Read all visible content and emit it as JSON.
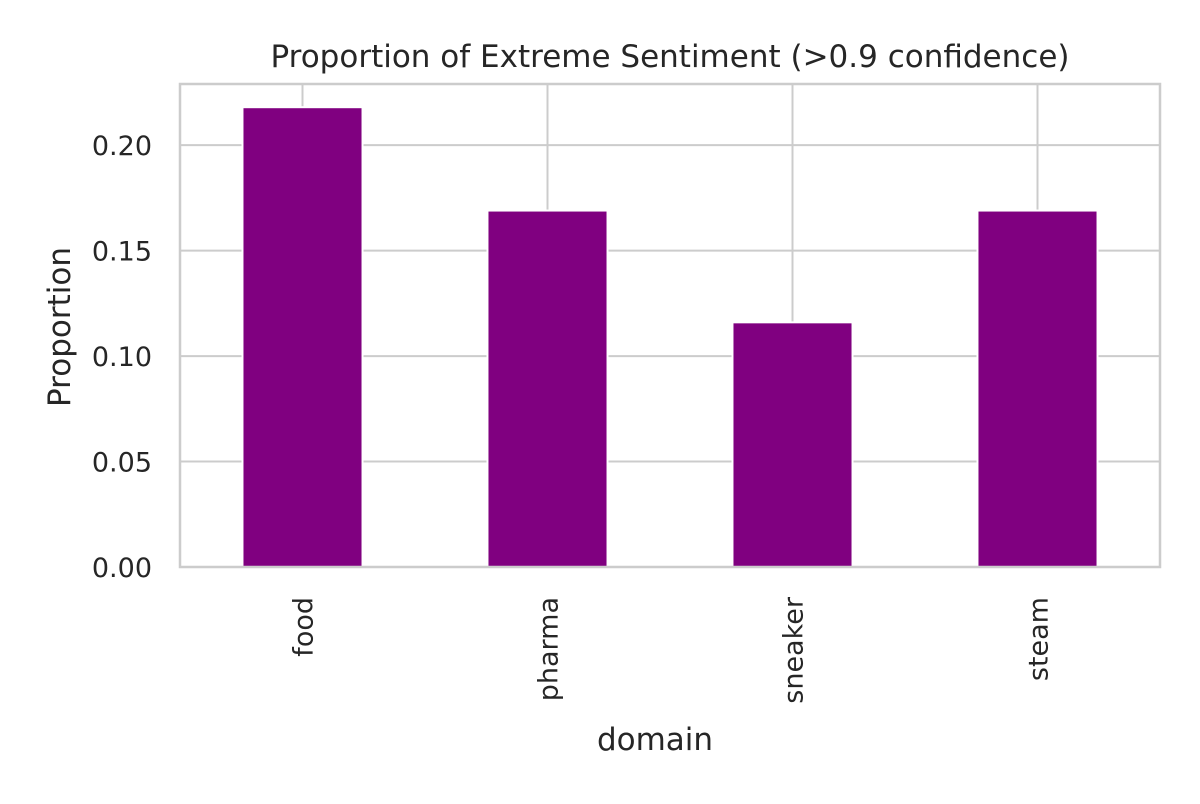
{
  "chart_data": {
    "type": "bar",
    "title": "Proportion of Extreme Sentiment (>0.9 confidence)",
    "xlabel": "domain",
    "ylabel": "Proportion",
    "categories": [
      "food",
      "pharma",
      "sneaker",
      "steam"
    ],
    "values": [
      0.218,
      0.169,
      0.116,
      0.169
    ],
    "ylim": [
      0,
      0.229
    ],
    "yticks": [
      0.0,
      0.05,
      0.1,
      0.15,
      0.2
    ],
    "ytick_labels": [
      "0.00",
      "0.05",
      "0.10",
      "0.15",
      "0.20"
    ],
    "grid": true,
    "legend": "none",
    "bar_color": "#800080",
    "grid_color": "#cccccc",
    "spine_color": "#cccccc"
  }
}
